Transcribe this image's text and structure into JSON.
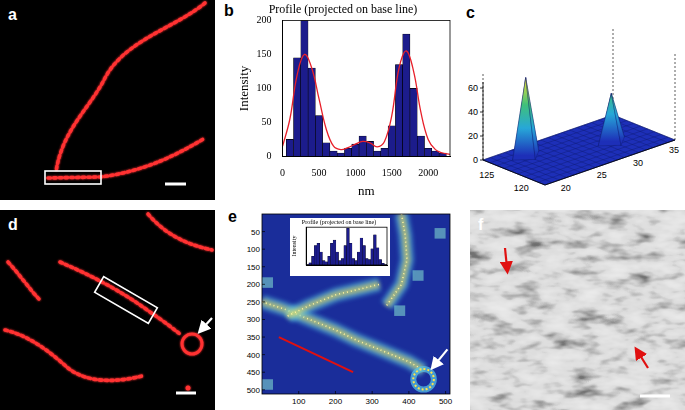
{
  "panel_labels": [
    "a",
    "b",
    "c",
    "d",
    "e",
    "f"
  ],
  "chart_data": [
    {
      "type": "histogram",
      "title": "Profile (projected on base line)",
      "x_label": "nm",
      "y_label": "Intensity",
      "bins": [
        50,
        150,
        250,
        350,
        450,
        550,
        650,
        750,
        850,
        950,
        1050,
        1150,
        1250,
        1350,
        1450,
        1550,
        1650,
        1750,
        1850,
        1950,
        2050,
        2150,
        2250
      ],
      "values": [
        25,
        145,
        200,
        130,
        60,
        20,
        8,
        5,
        12,
        18,
        30,
        22,
        8,
        12,
        45,
        135,
        180,
        100,
        30,
        12,
        8,
        5
      ],
      "color": "#1c1c8c",
      "fit": {
        "type": "line",
        "color": "#e8202a",
        "x": [
          0,
          100,
          200,
          300,
          400,
          500,
          600,
          700,
          800,
          900,
          1000,
          1100,
          1200,
          1300,
          1400,
          1500,
          1600,
          1700,
          1800,
          1900,
          2000,
          2100,
          2200,
          2300
        ],
        "values": [
          15,
          55,
          120,
          150,
          130,
          85,
          40,
          15,
          10,
          13,
          18,
          22,
          20,
          14,
          22,
          60,
          130,
          155,
          125,
          65,
          25,
          10,
          5,
          3
        ]
      },
      "xlim": [
        0,
        2300
      ],
      "xticks": [
        0,
        500,
        1000,
        1500,
        2000
      ],
      "ylim": [
        0,
        200
      ],
      "yticks": [
        0,
        50,
        100,
        150,
        200
      ]
    },
    {
      "type": "histogram",
      "title": "Profile (projected on base line)",
      "y_label": "Intensity",
      "bins": [
        0,
        100,
        200,
        300,
        400,
        500,
        600,
        700,
        800,
        900,
        1000,
        1100,
        1200,
        1300,
        1400,
        1500,
        1600,
        1700,
        1800,
        1900,
        2000,
        2100,
        2200,
        2300,
        2400,
        2500,
        2600,
        2700,
        2800,
        2900,
        3000
      ],
      "values": [
        5,
        20,
        80,
        180,
        200,
        120,
        40,
        30,
        80,
        200,
        230,
        120,
        40,
        60,
        180,
        340,
        200,
        60,
        40,
        120,
        250,
        180,
        60,
        50,
        150,
        280,
        160,
        50,
        15,
        5
      ],
      "color": "#1c1c8c",
      "xlim": [
        0,
        3000
      ],
      "ylim": [
        0,
        350
      ],
      "tick_labels": false
    }
  ],
  "surface": {
    "type": "surface",
    "xlim": [
      17,
      35
    ],
    "ylim": [
      118,
      127
    ],
    "zlim": [
      0,
      65
    ],
    "xticks": [
      20,
      25,
      30,
      35
    ],
    "yticks": [
      120,
      125
    ],
    "zticks": [
      0,
      20,
      40,
      60
    ],
    "peaks": [
      {
        "x": 21,
        "y": 125,
        "z": 65
      },
      {
        "x": 30,
        "y": 122,
        "z": 40
      }
    ]
  },
  "heatmap": {
    "type": "image",
    "xlim": [
      0,
      512
    ],
    "ylim": [
      0,
      512
    ],
    "xticks": [
      100,
      200,
      300,
      400,
      500
    ],
    "yticks": [
      50,
      100,
      150,
      200,
      250,
      300,
      350,
      400,
      450,
      500
    ]
  }
}
